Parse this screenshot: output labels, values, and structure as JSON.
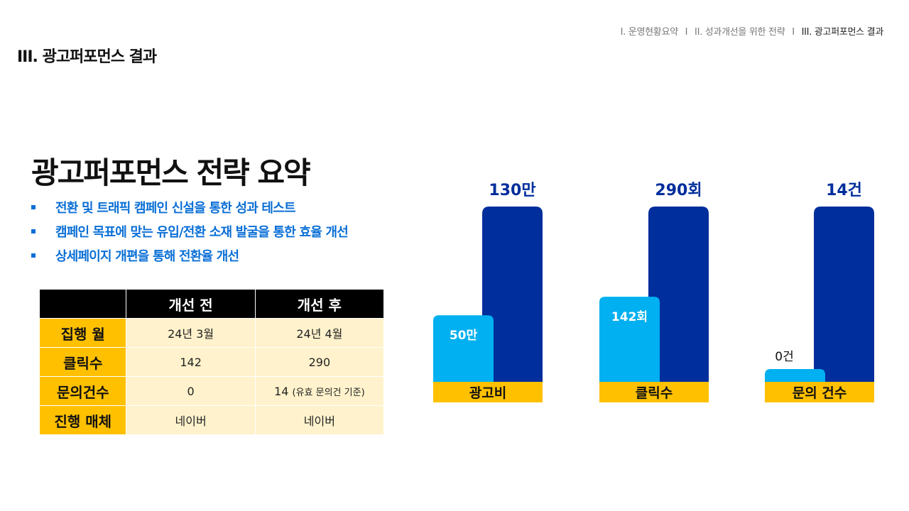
{
  "breadcrumb": {
    "items": [
      "I. 운영현황요약",
      "II. 성과개선을 위한 전략",
      "III. 광고퍼포먼스 결과"
    ],
    "separator": "I"
  },
  "section_title": "III. 광고퍼포먼스 결과",
  "main_title": "광고퍼포먼스 전략 요약",
  "bullets": [
    "전환 및 트래픽 캠페인 신설을 통한 성과 테스트",
    "캠페인 목표에 맞는 유입/전환 소재 발굴을 통한 효율 개선",
    "상세페이지 개편을 통해 전환율 개선"
  ],
  "table": {
    "headers": [
      "",
      "개선 전",
      "개선 후"
    ],
    "rows": [
      {
        "label": "집행 월",
        "before": "24년 3월",
        "after": "24년 4월",
        "after_note": ""
      },
      {
        "label": "클릭수",
        "before": "142",
        "after": "290",
        "after_note": ""
      },
      {
        "label": "문의건수",
        "before": "0",
        "after": "14",
        "after_note": "(유효 문의건 기준)"
      },
      {
        "label": "진행 매체",
        "before": "네이버",
        "after": "네이버",
        "after_note": ""
      }
    ]
  },
  "colors": {
    "before_bar": "#00b0f0",
    "after_bar": "#002e9c",
    "category_band": "#ffc000",
    "after_label": "#002e9c",
    "bullet_text": "#0a6fd6"
  },
  "chart_data": {
    "type": "bar",
    "categories": [
      "광고비",
      "클릭수",
      "문의 건수"
    ],
    "series": [
      {
        "values": [
          50,
          142,
          0
        ],
        "labels": [
          "50만",
          "142회",
          "0건"
        ]
      },
      {
        "values": [
          130,
          290,
          14
        ],
        "labels": [
          "130만",
          "290회",
          "14건"
        ]
      }
    ],
    "title": "",
    "xlabel": "",
    "ylabel": "",
    "grid": false,
    "legend": "none"
  }
}
